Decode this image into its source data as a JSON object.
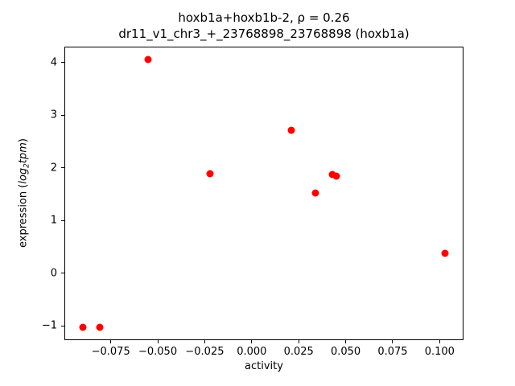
{
  "chart_data": {
    "type": "scatter",
    "title_line1": "hoxb1a+hoxb1b-2, ρ = 0.26",
    "title_line2": "dr11_v1_chr3_+_23768898_23768898 (hoxb1a)",
    "xlabel": "activity",
    "ylabel_segments": [
      {
        "text": "expression (",
        "italic": false,
        "sub": false
      },
      {
        "text": "log",
        "italic": true,
        "sub": false
      },
      {
        "text": "2",
        "italic": true,
        "sub": true
      },
      {
        "text": "tpm",
        "italic": true,
        "sub": false
      },
      {
        "text": ")",
        "italic": false,
        "sub": false
      }
    ],
    "xlim": [
      -0.0997,
      0.1127
    ],
    "ylim": [
      -1.27,
      4.3
    ],
    "xticks": [
      -0.075,
      -0.05,
      -0.025,
      0.0,
      0.025,
      0.05,
      0.075,
      0.1
    ],
    "yticks": [
      -1,
      0,
      1,
      2,
      3,
      4
    ],
    "marker_color": "#ff0000",
    "grid": false,
    "legend": "none",
    "points": [
      {
        "x": -0.09,
        "y": -1.03
      },
      {
        "x": -0.081,
        "y": -1.03
      },
      {
        "x": -0.055,
        "y": 4.05
      },
      {
        "x": -0.022,
        "y": 1.89
      },
      {
        "x": 0.021,
        "y": 2.71
      },
      {
        "x": 0.034,
        "y": 1.53
      },
      {
        "x": 0.043,
        "y": 1.88
      },
      {
        "x": 0.045,
        "y": 1.85
      },
      {
        "x": 0.103,
        "y": 0.38
      }
    ]
  }
}
